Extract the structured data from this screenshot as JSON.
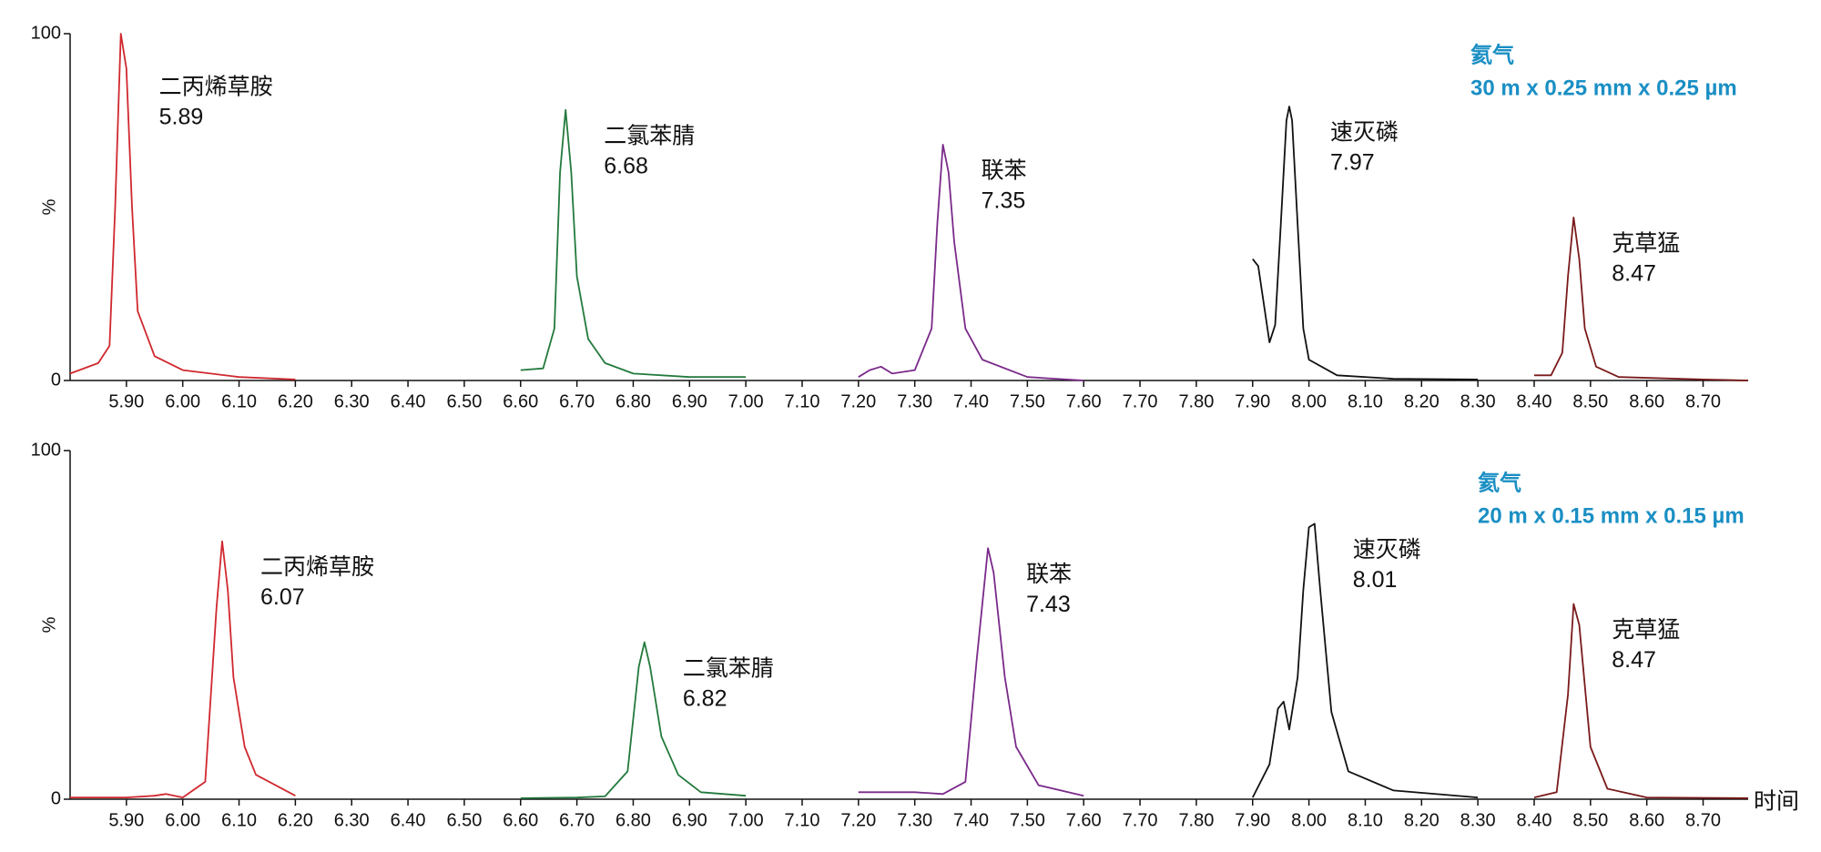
{
  "chart_data": [
    {
      "type": "line",
      "ylabel": "%",
      "carrier": "氦气",
      "column": "30 m x 0.25 mm x 0.25 µm",
      "xlim": [
        5.8,
        8.78
      ],
      "ylim": [
        0,
        100
      ],
      "yticks": [
        0,
        100
      ],
      "xticks": [
        {
          "value": 5.9,
          "label": "5.90"
        },
        {
          "value": 6.0,
          "label": "6.00"
        },
        {
          "value": 6.1,
          "label": "6.10"
        },
        {
          "value": 6.2,
          "label": "6.20"
        },
        {
          "value": 6.3,
          "label": "6.30"
        },
        {
          "value": 6.4,
          "label": "6.40"
        },
        {
          "value": 6.5,
          "label": "6.50"
        },
        {
          "value": 6.6,
          "label": "6.60"
        },
        {
          "value": 6.7,
          "label": "6.70"
        },
        {
          "value": 6.8,
          "label": "6.80"
        },
        {
          "value": 6.9,
          "label": "6.90"
        },
        {
          "value": 7.0,
          "label": "7.00"
        },
        {
          "value": 7.1,
          "label": "7.10"
        },
        {
          "value": 7.2,
          "label": "7.20"
        },
        {
          "value": 7.3,
          "label": "7.30"
        },
        {
          "value": 7.4,
          "label": "7.40"
        },
        {
          "value": 7.5,
          "label": "7.50"
        },
        {
          "value": 7.6,
          "label": "7.60"
        },
        {
          "value": 7.7,
          "label": "7.70"
        },
        {
          "value": 7.8,
          "label": "7.80"
        },
        {
          "value": 7.9,
          "label": "7.90"
        },
        {
          "value": 8.0,
          "label": "8.00"
        },
        {
          "value": 8.1,
          "label": "8.10"
        },
        {
          "value": 8.2,
          "label": "8.20"
        },
        {
          "value": 8.3,
          "label": "8.30"
        },
        {
          "value": 8.4,
          "label": "8.40"
        },
        {
          "value": 8.5,
          "label": "8.50"
        },
        {
          "value": 8.6,
          "label": "8.60"
        },
        {
          "value": 8.7,
          "label": "8.70"
        }
      ],
      "series": [
        {
          "color": "#d0282e",
          "x": [
            5.8,
            5.85,
            5.87,
            5.88,
            5.89,
            5.9,
            5.91,
            5.92,
            5.95,
            6.0,
            6.1,
            6.2
          ],
          "values": [
            2,
            5,
            10,
            50,
            100,
            90,
            50,
            20,
            7,
            3,
            1,
            0.3
          ]
        },
        {
          "color": "#237a3c",
          "x": [
            6.6,
            6.64,
            6.66,
            6.67,
            6.68,
            6.69,
            6.7,
            6.72,
            6.75,
            6.8,
            6.9,
            7.0
          ],
          "values": [
            3,
            3.5,
            15,
            60,
            78,
            60,
            30,
            12,
            5,
            2,
            1,
            1
          ]
        },
        {
          "color": "#7a2a8a",
          "x": [
            7.2,
            7.22,
            7.24,
            7.26,
            7.3,
            7.33,
            7.34,
            7.35,
            7.36,
            7.37,
            7.39,
            7.42,
            7.5,
            7.6
          ],
          "values": [
            1,
            3,
            4,
            2,
            3,
            15,
            45,
            68,
            60,
            40,
            15,
            6,
            1,
            0
          ]
        },
        {
          "color": "#111111",
          "x": [
            7.9,
            7.91,
            7.92,
            7.93,
            7.94,
            7.95,
            7.96,
            7.965,
            7.97,
            7.98,
            7.99,
            8.0,
            8.05,
            8.15,
            8.3
          ],
          "values": [
            35,
            33,
            22,
            11,
            16,
            45,
            75,
            79,
            75,
            45,
            15,
            6,
            1.5,
            0.5,
            0.3
          ]
        },
        {
          "color": "#7a1a1a",
          "x": [
            8.4,
            8.43,
            8.45,
            8.46,
            8.47,
            8.48,
            8.49,
            8.51,
            8.55,
            8.7,
            8.78
          ],
          "values": [
            1.5,
            1.5,
            8,
            30,
            47,
            35,
            15,
            4,
            1,
            0.3,
            0
          ]
        }
      ],
      "annotations": [
        {
          "text": "二丙烯草胺",
          "time": 5.89
        },
        {
          "text": "二氯苯腈",
          "time": 6.68
        },
        {
          "text": "联苯",
          "time": 7.35
        },
        {
          "text": "速灭磷",
          "time": 7.97
        },
        {
          "text": "克草猛",
          "time": 8.47
        }
      ]
    },
    {
      "type": "line",
      "ylabel": "%",
      "xlabel": "时间",
      "carrier": "氦气",
      "column": "20 m x 0.15 mm x 0.15 µm",
      "xlim": [
        5.8,
        8.78
      ],
      "ylim": [
        0,
        100
      ],
      "yticks": [
        0,
        100
      ],
      "xticks": [
        {
          "value": 5.9,
          "label": "5.90"
        },
        {
          "value": 6.0,
          "label": "6.00"
        },
        {
          "value": 6.1,
          "label": "6.10"
        },
        {
          "value": 6.2,
          "label": "6.20"
        },
        {
          "value": 6.3,
          "label": "6.30"
        },
        {
          "value": 6.4,
          "label": "6.40"
        },
        {
          "value": 6.5,
          "label": "6.50"
        },
        {
          "value": 6.6,
          "label": "6.60"
        },
        {
          "value": 6.7,
          "label": "6.70"
        },
        {
          "value": 6.8,
          "label": "6.80"
        },
        {
          "value": 6.9,
          "label": "6.90"
        },
        {
          "value": 7.0,
          "label": "7.00"
        },
        {
          "value": 7.1,
          "label": "7.10"
        },
        {
          "value": 7.2,
          "label": "7.20"
        },
        {
          "value": 7.3,
          "label": "7.30"
        },
        {
          "value": 7.4,
          "label": "7.40"
        },
        {
          "value": 7.5,
          "label": "7.50"
        },
        {
          "value": 7.6,
          "label": "7.60"
        },
        {
          "value": 7.7,
          "label": "7.70"
        },
        {
          "value": 7.8,
          "label": "7.80"
        },
        {
          "value": 7.9,
          "label": "7.90"
        },
        {
          "value": 8.0,
          "label": "8.00"
        },
        {
          "value": 8.1,
          "label": "8.10"
        },
        {
          "value": 8.2,
          "label": "8.20"
        },
        {
          "value": 8.3,
          "label": "8.30"
        },
        {
          "value": 8.4,
          "label": "8.40"
        },
        {
          "value": 8.5,
          "label": "8.50"
        },
        {
          "value": 8.6,
          "label": "8.60"
        },
        {
          "value": 8.7,
          "label": "8.70"
        }
      ],
      "series": [
        {
          "color": "#d0282e",
          "x": [
            5.8,
            5.9,
            5.95,
            5.97,
            6.0,
            6.04,
            6.06,
            6.07,
            6.08,
            6.09,
            6.11,
            6.13,
            6.2
          ],
          "values": [
            0.5,
            0.5,
            1,
            1.5,
            0.5,
            5,
            55,
            74,
            60,
            35,
            15,
            7,
            1
          ]
        },
        {
          "color": "#237a3c",
          "x": [
            6.6,
            6.7,
            6.75,
            6.79,
            6.81,
            6.82,
            6.83,
            6.85,
            6.88,
            6.92,
            7.0
          ],
          "values": [
            0.3,
            0.5,
            0.8,
            8,
            38,
            45,
            38,
            18,
            7,
            2,
            1
          ]
        },
        {
          "color": "#7a2a8a",
          "x": [
            7.2,
            7.3,
            7.35,
            7.39,
            7.41,
            7.43,
            7.44,
            7.46,
            7.48,
            7.52,
            7.6
          ],
          "values": [
            2,
            2,
            1.5,
            5,
            40,
            72,
            65,
            35,
            15,
            4,
            1
          ]
        },
        {
          "color": "#111111",
          "x": [
            7.9,
            7.93,
            7.945,
            7.955,
            7.965,
            7.98,
            7.99,
            8.0,
            8.01,
            8.02,
            8.04,
            8.07,
            8.15,
            8.3
          ],
          "values": [
            0.5,
            10,
            26,
            28,
            20,
            35,
            60,
            78,
            79,
            60,
            25,
            8,
            2.5,
            0.5
          ]
        },
        {
          "color": "#7a1a1a",
          "x": [
            8.4,
            8.44,
            8.46,
            8.47,
            8.48,
            8.5,
            8.53,
            8.6,
            8.78
          ],
          "values": [
            0.5,
            2,
            30,
            56,
            50,
            15,
            3,
            0.5,
            0.3
          ]
        }
      ],
      "annotations": [
        {
          "text": "二丙烯草胺",
          "time": 6.07
        },
        {
          "text": "二氯苯腈",
          "time": 6.82
        },
        {
          "text": "联苯",
          "time": 7.43
        },
        {
          "text": "速灭磷",
          "time": 8.01
        },
        {
          "text": "克草猛",
          "time": 8.47
        }
      ]
    }
  ]
}
